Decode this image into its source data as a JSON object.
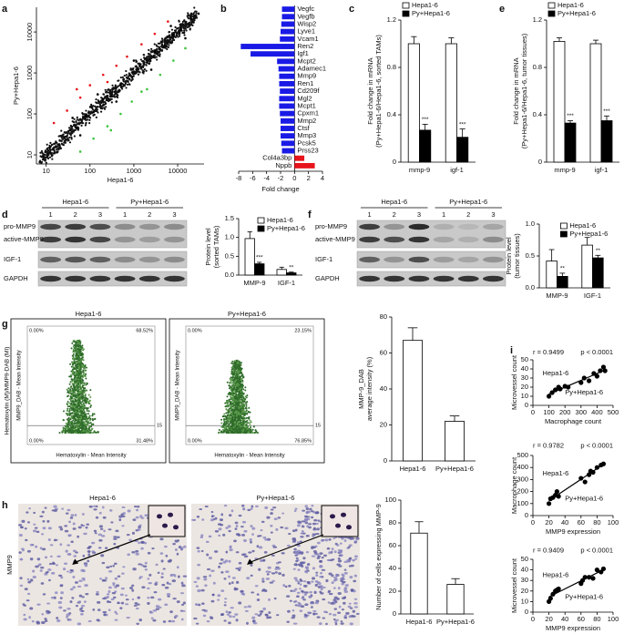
{
  "panel_labels": [
    "a",
    "b",
    "c",
    "d",
    "e",
    "f",
    "g",
    "h",
    "i"
  ],
  "chart_data": [
    {
      "type": "scatter",
      "xlabel": "Hepa1-6",
      "ylabel": [
        "Py+Hepa1-6"
      ],
      "log_x": true,
      "log_y": true,
      "xlim": [
        6,
        40000
      ],
      "ylim": [
        6,
        40000
      ],
      "xticks": [
        10,
        100,
        1000,
        10000
      ],
      "yticks": [
        10,
        100,
        1000,
        10000
      ],
      "series": [
        {
          "color": "#000000",
          "x": [
            8,
            12,
            20,
            35,
            50,
            80,
            120,
            200,
            300,
            500,
            800,
            1200,
            2000,
            3000,
            5000,
            8000,
            12000,
            20000,
            30000,
            60,
            40,
            150,
            400,
            1000,
            2500,
            7000,
            15000
          ],
          "y": [
            9,
            15,
            18,
            40,
            45,
            90,
            110,
            230,
            270,
            520,
            700,
            1300,
            1800,
            3300,
            4600,
            8500,
            11000,
            21000,
            28000,
            30,
            80,
            300,
            200,
            2000,
            1200,
            14000,
            7000
          ]
        },
        {
          "color": "#e8141b",
          "x": [
            15,
            30,
            60,
            100,
            200,
            400,
            700,
            1500,
            3000,
            6000,
            50,
            250
          ],
          "y": [
            60,
            120,
            250,
            500,
            900,
            1500,
            2500,
            5000,
            9000,
            18000,
            400,
            600
          ]
        },
        {
          "color": "#3cc43c",
          "x": [
            60,
            120,
            250,
            500,
            900,
            2000,
            4000,
            8000,
            15000,
            300,
            1500
          ],
          "y": [
            12,
            25,
            50,
            100,
            200,
            400,
            900,
            2000,
            4000,
            40,
            350
          ]
        }
      ]
    },
    {
      "type": "hbar",
      "xlabel": "Fold change",
      "color_down": "#1a1ae6",
      "color_up": "#e8141b",
      "xlim": [
        -8,
        4
      ],
      "xticks": [
        -8,
        -6,
        -4,
        -2,
        0,
        2,
        4
      ],
      "categories": [
        "Vegfc",
        "Vegfb",
        "Wisp2",
        "Lyve1",
        "Vcam1",
        "Ren2",
        "Igf1",
        "Mcpt2",
        "Adamec1",
        "Mmp9",
        "Ren1",
        "Cd209f",
        "Mgl2",
        "Mcpt1",
        "Cpxm1",
        "Mmp2",
        "Ctsf",
        "Mmp3",
        "Pcsk5",
        "Prss23",
        "Col4a3bp",
        "Nppb"
      ],
      "values": [
        -1.8,
        -1.8,
        -1.9,
        -2.0,
        -2.1,
        -7.7,
        -6.3,
        -2.5,
        -2.3,
        -2.2,
        -2.2,
        -2.1,
        -2.2,
        -2.2,
        -2.1,
        -2.0,
        -2.0,
        -2.0,
        -1.9,
        -1.8,
        1.4,
        2.9
      ]
    },
    {
      "type": "bar",
      "ylabel": [
        "Fold change in mRNA",
        "(Py+Hepa1-6/Hepa1-6, sorted TAMs)"
      ],
      "legend": "top",
      "ylim": [
        0,
        1.2
      ],
      "yticks": [
        0,
        0.4,
        0.8,
        1.2
      ],
      "categories": [
        "mmp-9",
        "igf-1"
      ],
      "series": [
        {
          "name": "Hepa1-6",
          "color": "#ffffff",
          "values": [
            1.0,
            1.0
          ],
          "errors": [
            0.06,
            0.05
          ]
        },
        {
          "name": "Py+Hepa1-6",
          "color": "#000000",
          "values": [
            0.27,
            0.21
          ],
          "errors": [
            0.05,
            0.07
          ],
          "annotations": [
            "***",
            "***"
          ]
        }
      ]
    },
    {
      "type": "bar",
      "ylabel": [
        "Fold change in mRNA",
        "(Py+Hepa1-6/Hepa1-6, tumor tissues)"
      ],
      "legend": "top",
      "ylim": [
        0,
        1.2
      ],
      "yticks": [
        0,
        0.4,
        0.8,
        1.2
      ],
      "categories": [
        "mmp-9",
        "igf-1"
      ],
      "series": [
        {
          "name": "Hepa1-6",
          "color": "#ffffff",
          "values": [
            1.02,
            1.0
          ],
          "errors": [
            0.03,
            0.03
          ]
        },
        {
          "name": "Py+Hepa1-6",
          "color": "#000000",
          "values": [
            0.33,
            0.35
          ],
          "errors": [
            0.02,
            0.04
          ],
          "annotations": [
            "***",
            "***"
          ]
        }
      ]
    },
    {
      "type": "bar",
      "ylabel": [
        "Protein level",
        "(sorted TAMs)"
      ],
      "legend": "upper right",
      "ylim": [
        0,
        1.5
      ],
      "yticks": [
        {
          "value": 0,
          "label": "0.0"
        },
        {
          "value": 0.5,
          "label": "0.5"
        },
        {
          "value": 1,
          "label": "1.0"
        },
        {
          "value": 1.5,
          "label": "1.5"
        }
      ],
      "categories": [
        "MMP-9",
        "IGF-1"
      ],
      "series": [
        {
          "name": "Hepa1-6",
          "color": "#ffffff",
          "values": [
            0.97,
            0.15
          ],
          "errors": [
            0.18,
            0.06
          ]
        },
        {
          "name": "Py+Hepa1-6",
          "color": "#000000",
          "values": [
            0.3,
            0.06
          ],
          "errors": [
            0.04,
            0.02
          ],
          "annotations": [
            "***",
            "**"
          ]
        }
      ]
    },
    {
      "type": "bar",
      "ylabel": [
        "Protein level",
        "(tumor tissues)"
      ],
      "legend": "upper right",
      "ylim": [
        0,
        1
      ],
      "yticks": [
        {
          "value": 0,
          "label": "0.0"
        },
        {
          "value": 0.5,
          "label": "0.5"
        },
        {
          "value": 1,
          "label": "1.0"
        }
      ],
      "categories": [
        "MMP-9",
        "IGF-1"
      ],
      "series": [
        {
          "name": "Hepa1-6",
          "color": "#ffffff",
          "values": [
            0.42,
            0.67
          ],
          "errors": [
            0.18,
            0.12
          ]
        },
        {
          "name": "Py+Hepa1-6",
          "color": "#000000",
          "values": [
            0.18,
            0.47
          ],
          "errors": [
            0.05,
            0.04
          ],
          "annotations": [
            "**",
            "**"
          ]
        }
      ]
    },
    {
      "type": "bar",
      "ylabel": [
        "MMP-9_DAB",
        "average intensity (%)"
      ],
      "ylim": [
        0,
        80
      ],
      "yticks": [
        0,
        20,
        40,
        60,
        80
      ],
      "categories": [
        "Hepa1-6",
        "Py+Hepa1-6"
      ],
      "series": [
        {
          "color": "#ffffff",
          "values": [
            67,
            22
          ],
          "errors": [
            7,
            3
          ]
        }
      ]
    },
    {
      "type": "bar",
      "ylabel": [
        "Number of cells expressing MMP-9"
      ],
      "ylim": [
        0,
        100
      ],
      "yticks": [
        0,
        20,
        40,
        60,
        80,
        100
      ],
      "categories": [
        "Hepa1-6",
        "Py+Hepa1-6"
      ],
      "series": [
        {
          "color": "#ffffff",
          "values": [
            71,
            26
          ],
          "errors": [
            10,
            5
          ]
        }
      ]
    },
    {
      "type": "scatter",
      "fit": true,
      "xlabel": "Macrophage count",
      "ylabel": [
        "Microvessel count"
      ],
      "xlim": [
        0,
        500
      ],
      "ylim": [
        0,
        50
      ],
      "xticks": [
        0,
        100,
        200,
        300,
        400,
        500
      ],
      "yticks": [
        0,
        10,
        20,
        30,
        40,
        50
      ],
      "annotations": [
        "r = 0.9499",
        "p < 0.0001",
        "Hepa1-6",
        "Py+Hepa1-6"
      ],
      "series": [
        {
          "color": "#000000",
          "x": [
            100,
            120,
            140,
            160,
            170,
            200,
            220,
            300,
            320,
            350,
            380,
            400,
            420,
            440,
            450
          ],
          "y": [
            10,
            14,
            17,
            20,
            18,
            21,
            20,
            25,
            30,
            27,
            35,
            32,
            38,
            42,
            38
          ]
        }
      ]
    },
    {
      "type": "scatter",
      "fit": true,
      "xlabel": "MMP9 expression",
      "ylabel": [
        "Macrophage count"
      ],
      "xlim": [
        0,
        100
      ],
      "ylim": [
        0,
        500
      ],
      "xticks": [
        0,
        20,
        40,
        60,
        80,
        100
      ],
      "yticks": [
        0,
        100,
        200,
        300,
        400,
        500
      ],
      "annotations": [
        "r = 0.9782",
        "p < 0.0001",
        "Hepa1-6",
        "Py+Hepa1-6"
      ],
      "series": [
        {
          "color": "#000000",
          "x": [
            20,
            22,
            25,
            28,
            30,
            32,
            60,
            65,
            70,
            72,
            75,
            80,
            85,
            88
          ],
          "y": [
            100,
            140,
            150,
            170,
            200,
            160,
            310,
            280,
            340,
            370,
            360,
            400,
            420,
            430
          ]
        }
      ]
    },
    {
      "type": "scatter",
      "fit": true,
      "xlabel": "MMP9 expression",
      "ylabel": [
        "Microvessel count"
      ],
      "xlim": [
        0,
        100
      ],
      "ylim": [
        0,
        50
      ],
      "xticks": [
        0,
        20,
        40,
        60,
        80,
        100
      ],
      "yticks": [
        0,
        10,
        20,
        30,
        40,
        50
      ],
      "annotations": [
        "r = 0.9409",
        "p < 0.0001",
        "Hepa1-6",
        "Py+Hepa1-6"
      ],
      "series": [
        {
          "color": "#000000",
          "x": [
            20,
            22,
            25,
            28,
            30,
            32,
            60,
            62,
            65,
            70,
            75,
            80,
            85,
            88
          ],
          "y": [
            10,
            13,
            17,
            20,
            21,
            22,
            27,
            30,
            33,
            33,
            32,
            40,
            38,
            41
          ]
        }
      ]
    }
  ],
  "blots": [
    {
      "groups": [
        "Hepa1-6",
        "Py+Hepa1-6"
      ],
      "lanes": [
        "1",
        "2",
        "3",
        "1",
        "2",
        "3"
      ],
      "rows": [
        "pro-MMP9",
        "active-MMP9",
        "IGF-1",
        "GAPDH"
      ]
    },
    {
      "groups": [
        "Hepa1-6",
        "Py+Hepa1-6"
      ],
      "lanes": [
        "1",
        "2",
        "3",
        "1",
        "2",
        "3"
      ],
      "rows": [
        "pro-MMP9",
        "active-MMP9",
        "IGF-1",
        "GAPDH"
      ]
    }
  ],
  "density_plots": {
    "ylabel": "Hematoxylin (M)/MMP9-DAB (MI)",
    "plots": [
      {
        "title": "Hepa1-6",
        "x_axis": "Hematoxylin - Mean Intensity",
        "y_axis": "MMP9_DAB - Mean Intensity",
        "threshold": "15",
        "quadrants": [
          "0.00%",
          "68.52%",
          "0.00%",
          "31.48%"
        ]
      },
      {
        "title": "Py+Hepa1-6",
        "x_axis": "Hematoxylin - Mean Intensity",
        "y_axis": "MMP9_DAB - Mean Intensity",
        "threshold": "15",
        "quadrants": [
          "0.00%",
          "23.15%",
          "0.00%",
          "76.85%"
        ]
      }
    ]
  },
  "micrographs": {
    "stain": "MMP9",
    "titles": [
      "Hepa1-6",
      "Py+Hepa1-6"
    ]
  }
}
